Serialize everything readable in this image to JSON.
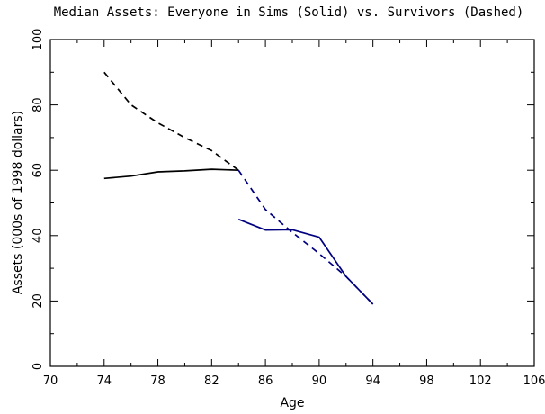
{
  "chart_data": {
    "type": "line",
    "title": "Median Assets:  Everyone in Sims (Solid) vs. Survivors (Dashed)",
    "xlabel": "Age",
    "ylabel": "Assets (000s of 1998 dollars)",
    "xlim": [
      70,
      106
    ],
    "ylim": [
      0,
      100
    ],
    "xticks": [
      70,
      74,
      78,
      82,
      86,
      90,
      94,
      98,
      102,
      106
    ],
    "xticks_minor": [
      72,
      76,
      80,
      84,
      88,
      92,
      96,
      100,
      104
    ],
    "yticks": [
      0,
      20,
      40,
      60,
      80,
      100
    ],
    "yticks_minor": [
      10,
      30,
      50,
      70,
      90
    ],
    "grid": false,
    "series": [
      {
        "style": "dashed",
        "color": "#000000",
        "x": [
          74,
          76,
          78,
          80,
          82,
          84
        ],
        "y": [
          90,
          80,
          74.5,
          70,
          66,
          60
        ]
      },
      {
        "style": "solid",
        "color": "#000000",
        "x": [
          74,
          76,
          78,
          80,
          82,
          84
        ],
        "y": [
          57.5,
          58.2,
          59.5,
          59.8,
          60.3,
          60
        ]
      },
      {
        "style": "dashed",
        "color": "#000080",
        "x": [
          84,
          86,
          88,
          90,
          92,
          94
        ],
        "y": [
          60,
          48,
          41,
          34.5,
          27.5,
          19
        ]
      },
      {
        "style": "solid",
        "color": "#000080",
        "x": [
          84,
          86,
          88,
          90,
          92,
          94
        ],
        "y": [
          45,
          41.7,
          41.8,
          39.5,
          27.5,
          19
        ]
      }
    ]
  }
}
